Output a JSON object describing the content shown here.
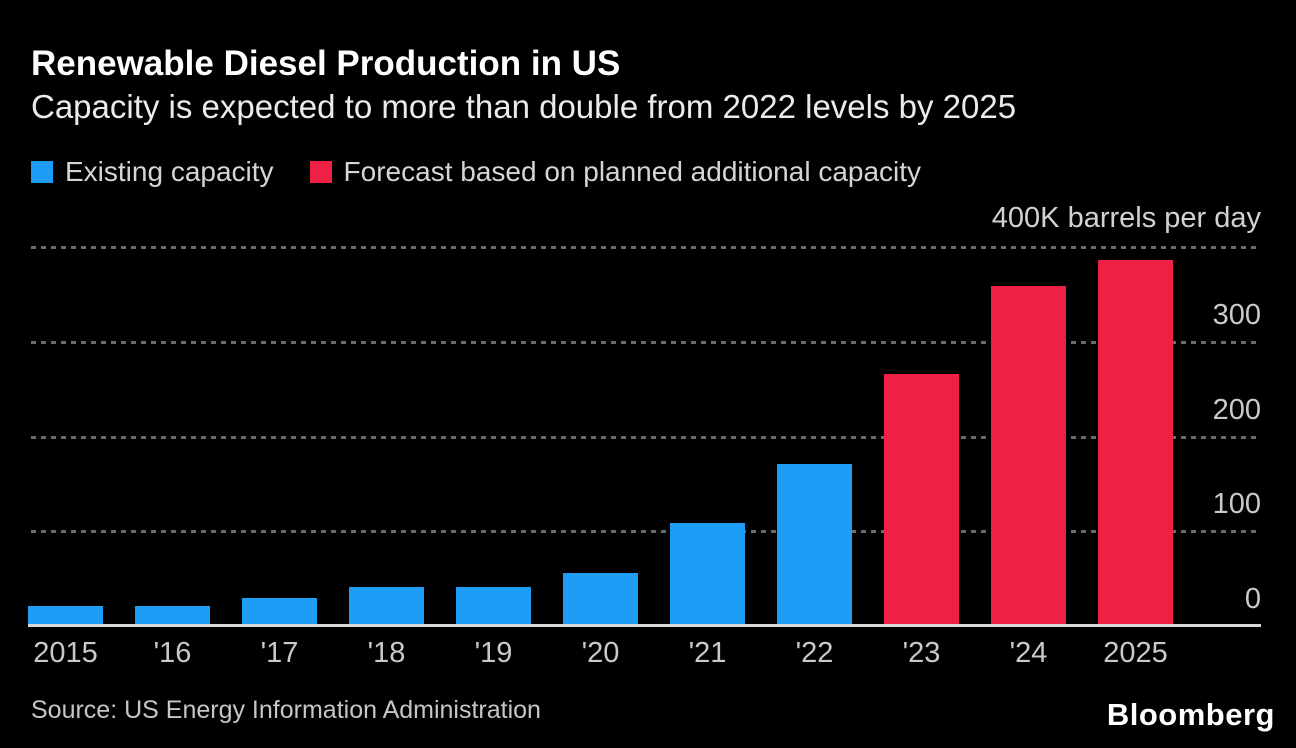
{
  "chart_data": {
    "type": "bar",
    "title": "Renewable Diesel Production in US",
    "subtitle": "Capacity is expected to more than double from 2022 levels by 2025",
    "unit_label": "400K barrels per day",
    "unit": "K barrels per day",
    "ylim": [
      0,
      400
    ],
    "yticks": [
      {
        "value": 0,
        "label": "0"
      },
      {
        "value": 100,
        "label": "100"
      },
      {
        "value": 200,
        "label": "200"
      },
      {
        "value": 300,
        "label": "300"
      }
    ],
    "gridline_values": [
      100,
      200,
      300,
      400
    ],
    "grid_style": "dotted horizontal gray lines on black background",
    "legend_position": "top-left",
    "categories": [
      "2015",
      "'16",
      "'17",
      "'18",
      "'19",
      "'20",
      "'21",
      "'22",
      "'23",
      "'24",
      "2025"
    ],
    "series": [
      {
        "name": "Existing capacity",
        "color": "#1d9df5"
      },
      {
        "name": "Forecast based on planned additional capacity",
        "color": "#ee2144"
      }
    ],
    "points": [
      {
        "category": "2015",
        "value": 20,
        "series": 0
      },
      {
        "category": "'16",
        "value": 20,
        "series": 0
      },
      {
        "category": "'17",
        "value": 28,
        "series": 0
      },
      {
        "category": "'18",
        "value": 40,
        "series": 0
      },
      {
        "category": "'19",
        "value": 40,
        "series": 0
      },
      {
        "category": "'20",
        "value": 55,
        "series": 0
      },
      {
        "category": "'21",
        "value": 108,
        "series": 0
      },
      {
        "category": "'22",
        "value": 170,
        "series": 0
      },
      {
        "category": "'23",
        "value": 265,
        "series": 1
      },
      {
        "category": "'24",
        "value": 358,
        "series": 1
      },
      {
        "category": "2025",
        "value": 385,
        "series": 1
      }
    ],
    "source": "Source: US Energy Information Administration",
    "brand": "Bloomberg"
  }
}
